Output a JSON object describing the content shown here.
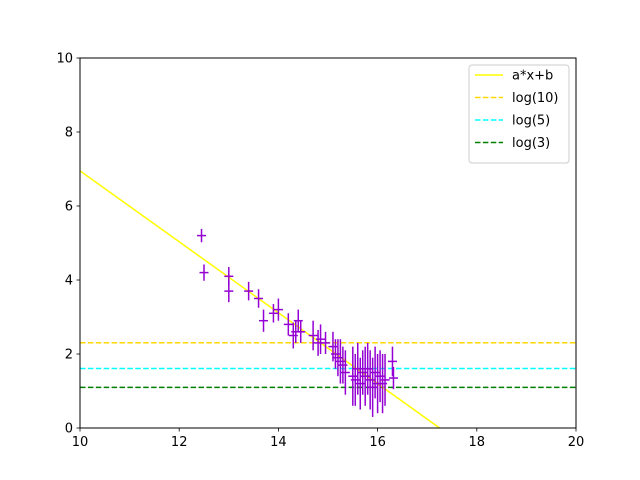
{
  "chart_data": {
    "type": "scatter",
    "title": "",
    "xlabel": "",
    "ylabel": "",
    "xlim": [
      10,
      20
    ],
    "ylim": [
      0,
      10
    ],
    "xticks": [
      10,
      12,
      14,
      16,
      18,
      20
    ],
    "yticks": [
      0,
      2,
      4,
      6,
      8,
      10
    ],
    "grid": false,
    "legend_position": "top-right",
    "fit_line": {
      "name": "a*x+b",
      "color": "#ffff00",
      "x": [
        10,
        17.25
      ],
      "y": [
        6.95,
        0
      ]
    },
    "hlines": [
      {
        "name": "log(10)",
        "y": 2.3026,
        "color": "#ffd700"
      },
      {
        "name": "log(5)",
        "y": 1.6094,
        "color": "#00ffff"
      },
      {
        "name": "log(3)",
        "y": 1.0986,
        "color": "#008000"
      }
    ],
    "series": [
      {
        "color": "#9400d3",
        "points": [
          {
            "x": 12.45,
            "y": 5.2,
            "err": 0.18
          },
          {
            "x": 12.5,
            "y": 4.2,
            "err": 0.22
          },
          {
            "x": 13.0,
            "y": 4.1,
            "err": 0.25
          },
          {
            "x": 13.0,
            "y": 3.7,
            "err": 0.3
          },
          {
            "x": 13.4,
            "y": 3.7,
            "err": 0.25
          },
          {
            "x": 13.6,
            "y": 3.5,
            "err": 0.25
          },
          {
            "x": 13.7,
            "y": 2.9,
            "err": 0.3
          },
          {
            "x": 13.9,
            "y": 3.1,
            "err": 0.25
          },
          {
            "x": 14.0,
            "y": 3.2,
            "err": 0.3
          },
          {
            "x": 14.2,
            "y": 2.8,
            "err": 0.3
          },
          {
            "x": 14.3,
            "y": 2.5,
            "err": 0.35
          },
          {
            "x": 14.35,
            "y": 2.6,
            "err": 0.3
          },
          {
            "x": 14.4,
            "y": 2.9,
            "err": 0.3
          },
          {
            "x": 14.45,
            "y": 2.6,
            "err": 0.3
          },
          {
            "x": 14.7,
            "y": 2.5,
            "err": 0.4
          },
          {
            "x": 14.8,
            "y": 2.3,
            "err": 0.35
          },
          {
            "x": 14.85,
            "y": 2.4,
            "err": 0.4
          },
          {
            "x": 14.95,
            "y": 2.3,
            "err": 0.3
          },
          {
            "x": 15.1,
            "y": 2.2,
            "err": 0.4
          },
          {
            "x": 15.15,
            "y": 2.0,
            "err": 0.4
          },
          {
            "x": 15.2,
            "y": 1.9,
            "err": 0.5
          },
          {
            "x": 15.25,
            "y": 1.8,
            "err": 0.6
          },
          {
            "x": 15.3,
            "y": 1.7,
            "err": 0.5
          },
          {
            "x": 15.35,
            "y": 1.5,
            "err": 0.6
          },
          {
            "x": 15.5,
            "y": 1.4,
            "err": 0.8
          },
          {
            "x": 15.55,
            "y": 1.3,
            "err": 0.7
          },
          {
            "x": 15.6,
            "y": 1.6,
            "err": 0.7
          },
          {
            "x": 15.65,
            "y": 1.2,
            "err": 0.7
          },
          {
            "x": 15.7,
            "y": 1.5,
            "err": 0.6
          },
          {
            "x": 15.75,
            "y": 1.4,
            "err": 0.8
          },
          {
            "x": 15.8,
            "y": 1.6,
            "err": 0.7
          },
          {
            "x": 15.85,
            "y": 1.3,
            "err": 0.8
          },
          {
            "x": 15.9,
            "y": 1.1,
            "err": 0.8
          },
          {
            "x": 15.95,
            "y": 1.5,
            "err": 0.7
          },
          {
            "x": 16.0,
            "y": 1.2,
            "err": 0.8
          },
          {
            "x": 16.05,
            "y": 1.4,
            "err": 0.7
          },
          {
            "x": 16.1,
            "y": 1.2,
            "err": 0.8
          },
          {
            "x": 16.15,
            "y": 1.3,
            "err": 0.7
          },
          {
            "x": 16.3,
            "y": 1.8,
            "err": 0.4
          },
          {
            "x": 16.32,
            "y": 1.35,
            "err": 0.3
          }
        ]
      }
    ]
  }
}
